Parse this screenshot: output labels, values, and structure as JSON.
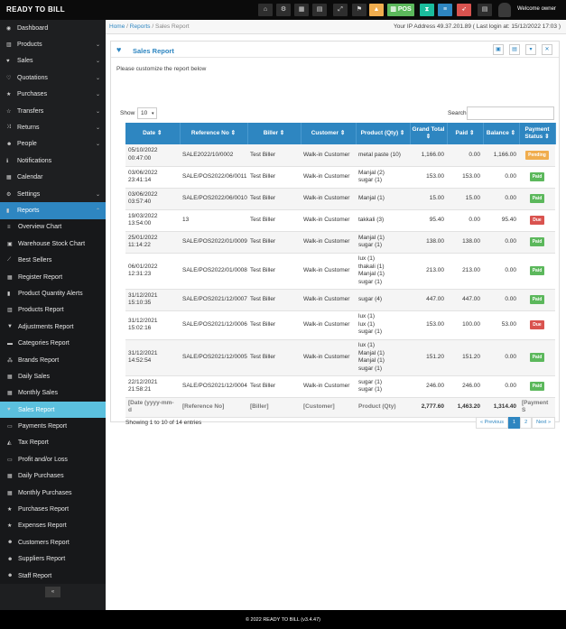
{
  "app": {
    "brand": "READY TO BILL",
    "welcome": "Welcome owner"
  },
  "toolbar": [
    {
      "icon": "home-icon",
      "glyph": "⌂",
      "color": "#2e2e2e"
    },
    {
      "icon": "gear-icon",
      "glyph": "⚙",
      "color": "#2e2e2e"
    },
    {
      "icon": "calculator-icon",
      "glyph": "▦",
      "color": "#2e2e2e"
    },
    {
      "icon": "calendar-icon",
      "glyph": "▤",
      "color": "#2e2e2e"
    },
    {
      "icon": "expand-icon",
      "glyph": "⤢",
      "color": "#2e2e2e"
    },
    {
      "icon": "flag-icon",
      "glyph": "⚑",
      "color": "#2e2e2e"
    },
    {
      "icon": "alert-icon",
      "glyph": "▲",
      "color": "#f0ad4e"
    },
    {
      "icon": "pos-icon",
      "glyph": "▥ POS",
      "color": "#5cb85c"
    },
    {
      "icon": "hourglass-icon",
      "glyph": "⧗",
      "color": "#1abc9c"
    },
    {
      "icon": "list-icon",
      "glyph": "≡",
      "color": "#2e86c1"
    },
    {
      "icon": "rocket-icon",
      "glyph": "➶",
      "color": "#d9534f"
    },
    {
      "icon": "menu-icon",
      "glyph": "▤",
      "color": "#2e2e2e"
    }
  ],
  "sidebar": {
    "items_top": [
      {
        "label": "Dashboard",
        "icon": "dashboard-icon",
        "glyph": "◉",
        "caret": ""
      },
      {
        "label": "Products",
        "icon": "barcode-icon",
        "glyph": "▥",
        "caret": "⌄"
      },
      {
        "label": "Sales",
        "icon": "heart-icon",
        "glyph": "♥",
        "caret": "⌄"
      },
      {
        "label": "Quotations",
        "icon": "heart-outline-icon",
        "glyph": "♡",
        "caret": "⌄"
      },
      {
        "label": "Purchases",
        "icon": "star-icon",
        "glyph": "★",
        "caret": "⌄"
      },
      {
        "label": "Transfers",
        "icon": "star-outline-icon",
        "glyph": "☆",
        "caret": "⌄"
      },
      {
        "label": "Returns",
        "icon": "random-icon",
        "glyph": "⤨",
        "caret": "⌄"
      },
      {
        "label": "People",
        "icon": "users-icon",
        "glyph": "☻",
        "caret": "⌄"
      },
      {
        "label": "Notifications",
        "icon": "info-icon",
        "glyph": "ℹ",
        "caret": ""
      },
      {
        "label": "Calendar",
        "icon": "calendar-icon",
        "glyph": "▦",
        "caret": ""
      },
      {
        "label": "Settings",
        "icon": "cog-icon",
        "glyph": "⚙",
        "caret": "⌄"
      },
      {
        "label": "Reports",
        "icon": "bar-chart-icon",
        "glyph": "▮",
        "caret": "⌃"
      }
    ],
    "report_items": [
      {
        "label": "Overview Chart",
        "icon": "bars-icon",
        "glyph": "≡"
      },
      {
        "label": "Warehouse Stock Chart",
        "icon": "building-icon",
        "glyph": "▣"
      },
      {
        "label": "Best Sellers",
        "icon": "line-chart-icon",
        "glyph": "⟋"
      },
      {
        "label": "Register Report",
        "icon": "th-icon",
        "glyph": "▦"
      },
      {
        "label": "Product Quantity Alerts",
        "icon": "bar-chart-icon",
        "glyph": "▮"
      },
      {
        "label": "Products Report",
        "icon": "barcode-icon",
        "glyph": "▥"
      },
      {
        "label": "Adjustments Report",
        "icon": "filter-icon",
        "glyph": "▼"
      },
      {
        "label": "Categories Report",
        "icon": "folder-icon",
        "glyph": "▬"
      },
      {
        "label": "Brands Report",
        "icon": "cubes-icon",
        "glyph": "⁂"
      },
      {
        "label": "Daily Sales",
        "icon": "calendar-icon",
        "glyph": "▦"
      },
      {
        "label": "Monthly Sales",
        "icon": "calendar-icon",
        "glyph": "▦"
      },
      {
        "label": "Sales Report",
        "icon": "heart-icon",
        "glyph": "♥"
      },
      {
        "label": "Payments Report",
        "icon": "money-icon",
        "glyph": "▭"
      },
      {
        "label": "Tax Report",
        "icon": "area-chart-icon",
        "glyph": "◭"
      },
      {
        "label": "Profit and/or Loss",
        "icon": "money-icon",
        "glyph": "▭"
      },
      {
        "label": "Daily Purchases",
        "icon": "calendar-icon",
        "glyph": "▦"
      },
      {
        "label": "Monthly Purchases",
        "icon": "calendar-icon",
        "glyph": "▦"
      },
      {
        "label": "Purchases Report",
        "icon": "star-icon",
        "glyph": "★"
      },
      {
        "label": "Expenses Report",
        "icon": "star-icon",
        "glyph": "★"
      },
      {
        "label": "Customers Report",
        "icon": "users-icon",
        "glyph": "☻"
      },
      {
        "label": "Suppliers Report",
        "icon": "users-icon",
        "glyph": "☻"
      },
      {
        "label": "Staff Report",
        "icon": "users-icon",
        "glyph": "☻"
      }
    ],
    "active_item": "Sales Report",
    "collapse_glyph": "«"
  },
  "breadcrumb": {
    "home": "Home",
    "reports": "Reports",
    "current": "Sales Report",
    "sep": "/"
  },
  "ip_info": "Your IP Address 49.37.201.89 ( Last login at: 15/12/2022 17:03 )",
  "panel": {
    "title": "Sales Report",
    "intro": "Please customize the report below"
  },
  "table_controls": {
    "show_label": "Show",
    "show_value": "10",
    "search_label": "Search"
  },
  "table": {
    "columns": [
      "Date",
      "Reference No",
      "Biller",
      "Customer",
      "Product (Qty)",
      "Grand Total",
      "Paid",
      "Balance",
      "Payment Status"
    ],
    "rows": [
      {
        "date": "05/10/2022 00:47:00",
        "ref": "SALE2022/10/0002",
        "biller": "Test Biller",
        "customer": "Walk-in Customer",
        "products": "metal paste (10)",
        "grand": "1,166.00",
        "paid": "0.00",
        "balance": "1,166.00",
        "status": "Pending",
        "status_class": "pending"
      },
      {
        "date": "03/06/2022 23:41:14",
        "ref": "SALE/POS2022/06/0011",
        "biller": "Test Biller",
        "customer": "Walk-in Customer",
        "products": "Manjal (2)\nsugar (1)",
        "grand": "153.00",
        "paid": "153.00",
        "balance": "0.00",
        "status": "Paid",
        "status_class": "paid"
      },
      {
        "date": "03/06/2022 03:57:40",
        "ref": "SALE/POS2022/06/0010",
        "biller": "Test Biller",
        "customer": "Walk-in Customer",
        "products": "Manjal (1)",
        "grand": "15.00",
        "paid": "15.00",
        "balance": "0.00",
        "status": "Paid",
        "status_class": "paid"
      },
      {
        "date": "19/03/2022 13:54:00",
        "ref": "13",
        "biller": "Test Biller",
        "customer": "Walk-in Customer",
        "products": "takkali (3)",
        "grand": "95.40",
        "paid": "0.00",
        "balance": "95.40",
        "status": "Due",
        "status_class": "due"
      },
      {
        "date": "25/01/2022 11:14:22",
        "ref": "SALE/POS2022/01/0009",
        "biller": "Test Biller",
        "customer": "Walk-in Customer",
        "products": "Manjal (1)\nsugar (1)",
        "grand": "138.00",
        "paid": "138.00",
        "balance": "0.00",
        "status": "Paid",
        "status_class": "paid"
      },
      {
        "date": "06/01/2022 12:31:23",
        "ref": "SALE/POS2022/01/0008",
        "biller": "Test Biller",
        "customer": "Walk-in Customer",
        "products": "lux (1)\nthakali (1)\nManjal (1)\nsugar (1)",
        "grand": "213.00",
        "paid": "213.00",
        "balance": "0.00",
        "status": "Paid",
        "status_class": "paid"
      },
      {
        "date": "31/12/2021 15:10:35",
        "ref": "SALE/POS2021/12/0007",
        "biller": "Test Biller",
        "customer": "Walk-in Customer",
        "products": "sugar (4)",
        "grand": "447.00",
        "paid": "447.00",
        "balance": "0.00",
        "status": "Paid",
        "status_class": "paid"
      },
      {
        "date": "31/12/2021 15:02:16",
        "ref": "SALE/POS2021/12/0006",
        "biller": "Test Biller",
        "customer": "Walk-in Customer",
        "products": "lux (1)\nlux (1)\nsugar (1)",
        "grand": "153.00",
        "paid": "100.00",
        "balance": "53.00",
        "status": "Due",
        "status_class": "due"
      },
      {
        "date": "31/12/2021 14:52:54",
        "ref": "SALE/POS2021/12/0005",
        "biller": "Test Biller",
        "customer": "Walk-in Customer",
        "products": "lux (1)\nManjal (1)\nManjal (1)\nsugar (1)",
        "grand": "151.20",
        "paid": "151.20",
        "balance": "0.00",
        "status": "Paid",
        "status_class": "paid"
      },
      {
        "date": "22/12/2021 21:58:21",
        "ref": "SALE/POS2021/12/0004",
        "biller": "Test Biller",
        "customer": "Walk-in Customer",
        "products": "sugar (1)\nsugar (1)",
        "grand": "246.00",
        "paid": "246.00",
        "balance": "0.00",
        "status": "Paid",
        "status_class": "paid"
      }
    ],
    "footer": {
      "date": "[Date (yyyy-mm-d",
      "ref": "[Reference No]",
      "biller": "[Biller]",
      "customer": "[Customer]",
      "products": "Product (Qty)",
      "grand": "2,777.60",
      "paid": "1,463.20",
      "balance": "1,314.40",
      "status": "[Payment S"
    }
  },
  "table_info": "Showing 1 to 10 of 14 entries",
  "pagination": {
    "prev": "« Previous",
    "pages": [
      "1",
      "2"
    ],
    "current": "1",
    "next": "Next »"
  },
  "footer_text": "© 2022 READY TO BILL (v3.4.47)"
}
